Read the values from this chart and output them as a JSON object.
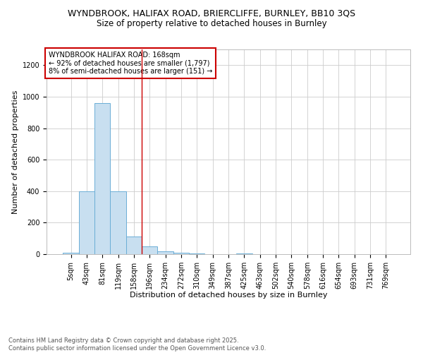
{
  "title1": "WYNDBROOK, HALIFAX ROAD, BRIERCLIFFE, BURNLEY, BB10 3QS",
  "title2": "Size of property relative to detached houses in Burnley",
  "xlabel": "Distribution of detached houses by size in Burnley",
  "ylabel": "Number of detached properties",
  "footnote": "Contains HM Land Registry data © Crown copyright and database right 2025.\nContains public sector information licensed under the Open Government Licence v3.0.",
  "categories": [
    "5sqm",
    "43sqm",
    "81sqm",
    "119sqm",
    "158sqm",
    "196sqm",
    "234sqm",
    "272sqm",
    "310sqm",
    "349sqm",
    "387sqm",
    "425sqm",
    "463sqm",
    "502sqm",
    "540sqm",
    "578sqm",
    "616sqm",
    "654sqm",
    "693sqm",
    "731sqm",
    "769sqm"
  ],
  "values": [
    10,
    400,
    960,
    400,
    110,
    50,
    20,
    10,
    5,
    0,
    0,
    5,
    0,
    0,
    0,
    0,
    0,
    0,
    0,
    0,
    0
  ],
  "bar_color": "#c8dff0",
  "bar_edge_color": "#6baed6",
  "vline_x": 4.5,
  "vline_color": "#cc0000",
  "annotation_text": "WYNDBROOK HALIFAX ROAD: 168sqm\n← 92% of detached houses are smaller (1,797)\n8% of semi-detached houses are larger (151) →",
  "annotation_box_color": "#cc0000",
  "ylim": [
    0,
    1300
  ],
  "yticks": [
    0,
    200,
    400,
    600,
    800,
    1000,
    1200
  ],
  "grid_color": "#cccccc",
  "background_color": "#ffffff",
  "title1_fontsize": 9,
  "title2_fontsize": 8.5,
  "axis_label_fontsize": 8,
  "tick_fontsize": 7,
  "annotation_fontsize": 7,
  "footnote_fontsize": 6
}
